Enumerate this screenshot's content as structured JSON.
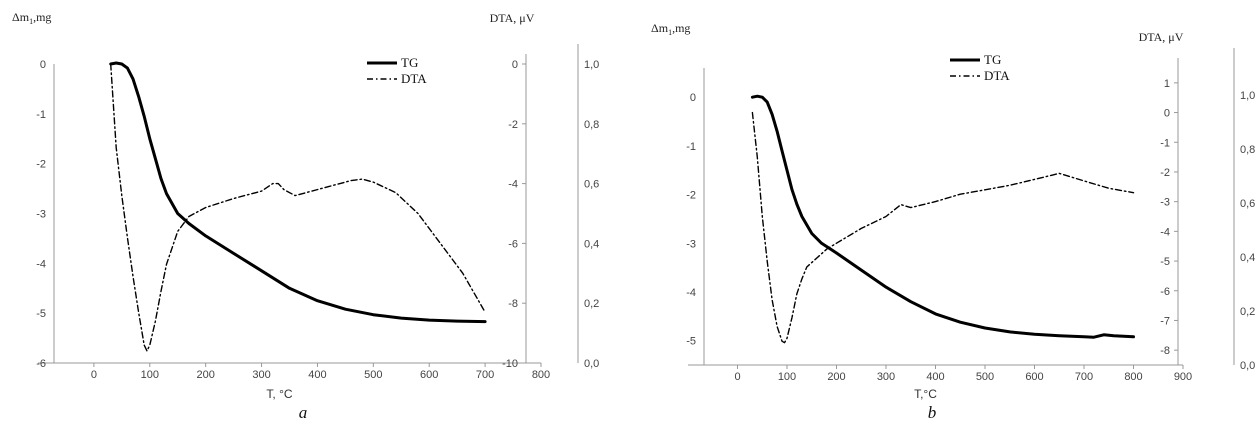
{
  "chart_data": [
    {
      "type": "line",
      "caption": "a",
      "xlabel": "T, °C",
      "ylabel_left": "Δm",
      "ylabel_left_sub": "1",
      "ylabel_left_unit": ",mg",
      "ylabel_right": "DTA, μV",
      "xlim": [
        -100,
        800
      ],
      "x_ticks": [
        "0",
        "100",
        "200",
        "300",
        "400",
        "500",
        "600",
        "700",
        "800"
      ],
      "x_tick_values": [
        0,
        100,
        200,
        300,
        400,
        500,
        600,
        700,
        800
      ],
      "y_left_lim": [
        -6,
        0
      ],
      "y_left_ticks": [
        "-6",
        "-5",
        "-4",
        "-3",
        "-2",
        "-1",
        "0"
      ],
      "y_left_tick_values": [
        -6,
        -5,
        -4,
        -3,
        -2,
        -1,
        0
      ],
      "y_right_lim": [
        -10,
        0
      ],
      "y_right_ticks": [
        "-10",
        "-8",
        "-6",
        "-4",
        "-2",
        "0"
      ],
      "y_right_tick_values": [
        -10,
        -8,
        -6,
        -4,
        -2,
        0
      ],
      "y_extra_lim": [
        0,
        1
      ],
      "y_extra_ticks": [
        "0,0",
        "0,2",
        "0,4",
        "0,6",
        "0,8",
        "1,0"
      ],
      "y_extra_tick_values": [
        0,
        0.2,
        0.4,
        0.6,
        0.8,
        1.0
      ],
      "legend": [
        "TG",
        "DTA"
      ],
      "legend_position": "top-center",
      "series": [
        {
          "name": "TG",
          "axis": "left",
          "style": "solid",
          "x": [
            30,
            40,
            50,
            60,
            70,
            80,
            90,
            100,
            110,
            120,
            130,
            150,
            170,
            200,
            250,
            300,
            350,
            400,
            450,
            500,
            550,
            600,
            650,
            700
          ],
          "y": [
            0,
            0.02,
            0,
            -0.08,
            -0.3,
            -0.65,
            -1.05,
            -1.5,
            -1.9,
            -2.3,
            -2.6,
            -3.0,
            -3.2,
            -3.45,
            -3.8,
            -4.15,
            -4.5,
            -4.75,
            -4.92,
            -5.03,
            -5.1,
            -5.14,
            -5.16,
            -5.17
          ]
        },
        {
          "name": "DTA",
          "axis": "right",
          "style": "dash-dot",
          "x": [
            30,
            40,
            50,
            60,
            70,
            80,
            90,
            95,
            100,
            110,
            120,
            130,
            150,
            170,
            200,
            250,
            300,
            320,
            330,
            340,
            360,
            380,
            420,
            460,
            480,
            500,
            540,
            580,
            620,
            660,
            700
          ],
          "y": [
            0,
            -2.8,
            -4.4,
            -5.8,
            -7.1,
            -8.3,
            -9.4,
            -9.6,
            -9.4,
            -8.6,
            -7.6,
            -6.7,
            -5.6,
            -5.1,
            -4.8,
            -4.5,
            -4.25,
            -4.0,
            -4.0,
            -4.2,
            -4.4,
            -4.3,
            -4.1,
            -3.9,
            -3.85,
            -3.95,
            -4.3,
            -5.0,
            -6.0,
            -7.0,
            -8.3
          ]
        }
      ]
    },
    {
      "type": "line",
      "caption": "b",
      "xlabel": "T,°C",
      "ylabel_left": "Δm",
      "ylabel_left_sub": "1",
      "ylabel_left_unit": ",mg",
      "ylabel_right": "DTA, μV",
      "xlim": [
        -100,
        900
      ],
      "x_ticks": [
        "0",
        "100",
        "200",
        "300",
        "400",
        "500",
        "600",
        "700",
        "800",
        "900"
      ],
      "x_tick_values": [
        0,
        100,
        200,
        300,
        400,
        500,
        600,
        700,
        800,
        900
      ],
      "y_left_lim": [
        -5.5,
        0.6
      ],
      "y_left_ticks": [
        "-5",
        "-4",
        "-3",
        "-2",
        "-1",
        "0"
      ],
      "y_left_tick_values": [
        -5,
        -4,
        -3,
        -2,
        -1,
        0
      ],
      "y_right_lim": [
        -8.5,
        1.5
      ],
      "y_right_ticks": [
        "-8",
        "-7",
        "-6",
        "-5",
        "-4",
        "-3",
        "-2",
        "-1",
        "0",
        "1"
      ],
      "y_right_tick_values": [
        -8,
        -7,
        -6,
        -5,
        -4,
        -3,
        -2,
        -1,
        0,
        1
      ],
      "y_extra_lim": [
        0,
        1.1
      ],
      "y_extra_ticks": [
        "0,0",
        "0,2",
        "0,4",
        "0,6",
        "0,8",
        "1,0"
      ],
      "y_extra_tick_values": [
        0,
        0.2,
        0.4,
        0.6,
        0.8,
        1.0
      ],
      "legend": [
        "TG",
        "DTA"
      ],
      "legend_position": "top-center",
      "series": [
        {
          "name": "TG",
          "axis": "left",
          "style": "solid",
          "x": [
            30,
            40,
            50,
            60,
            70,
            80,
            90,
            100,
            110,
            120,
            130,
            150,
            170,
            200,
            250,
            300,
            350,
            400,
            450,
            500,
            550,
            600,
            650,
            700,
            720,
            740,
            760,
            800
          ],
          "y": [
            0,
            0.02,
            0,
            -0.1,
            -0.35,
            -0.7,
            -1.1,
            -1.5,
            -1.9,
            -2.2,
            -2.45,
            -2.8,
            -3.0,
            -3.2,
            -3.55,
            -3.9,
            -4.2,
            -4.45,
            -4.62,
            -4.74,
            -4.82,
            -4.87,
            -4.9,
            -4.92,
            -4.93,
            -4.88,
            -4.9,
            -4.92
          ]
        },
        {
          "name": "DTA",
          "axis": "right",
          "style": "dash-dot",
          "x": [
            30,
            40,
            50,
            60,
            70,
            80,
            90,
            95,
            100,
            110,
            120,
            130,
            140,
            160,
            180,
            200,
            250,
            300,
            330,
            350,
            400,
            450,
            500,
            550,
            600,
            650,
            700,
            750,
            800
          ],
          "y": [
            0,
            -1.5,
            -3.5,
            -5.0,
            -6.3,
            -7.2,
            -7.7,
            -7.75,
            -7.6,
            -6.9,
            -6.1,
            -5.6,
            -5.2,
            -4.9,
            -4.6,
            -4.4,
            -3.9,
            -3.5,
            -3.1,
            -3.2,
            -3.0,
            -2.75,
            -2.6,
            -2.45,
            -2.25,
            -2.05,
            -2.3,
            -2.55,
            -2.7
          ]
        }
      ]
    }
  ]
}
